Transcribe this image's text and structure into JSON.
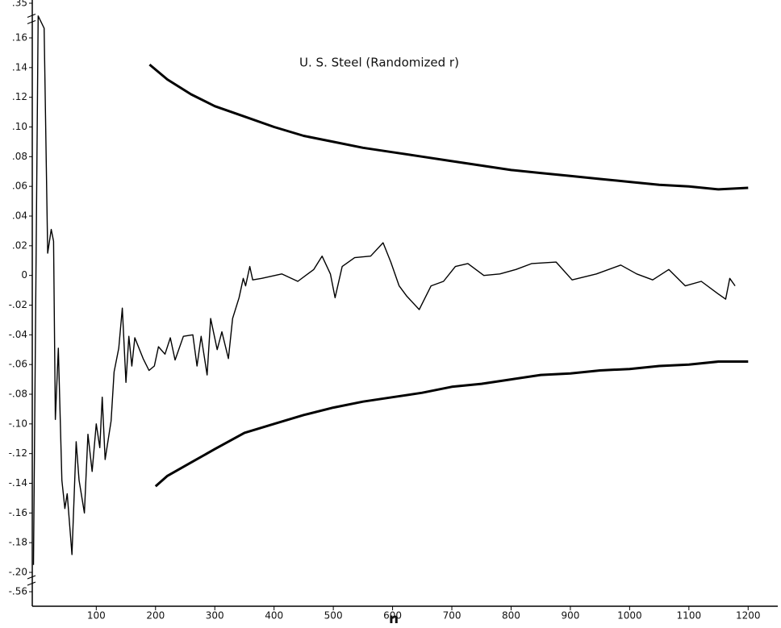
{
  "chart_data": {
    "type": "line",
    "title": "U. S. Steel (Randomized r)",
    "xlabel": "n",
    "xlim": [
      -8,
      1250
    ],
    "xticks": [
      100,
      200,
      300,
      400,
      500,
      600,
      700,
      800,
      900,
      1000,
      1100,
      1200
    ],
    "ylim": [
      -0.56,
      0.35
    ],
    "axis_break": true,
    "yticks": [
      {
        "value": -0.56,
        "label": "-.56"
      },
      {
        "value": -0.2,
        "label": "-.20"
      },
      {
        "value": -0.18,
        "label": "-.18"
      },
      {
        "value": -0.16,
        "label": "-.16"
      },
      {
        "value": -0.14,
        "label": "-.14"
      },
      {
        "value": -0.12,
        "label": "-.12"
      },
      {
        "value": -0.1,
        "label": "-.10"
      },
      {
        "value": -0.08,
        "label": "-.08"
      },
      {
        "value": -0.06,
        "label": "-.06"
      },
      {
        "value": -0.04,
        "label": "-.04"
      },
      {
        "value": -0.02,
        "label": "-.02"
      },
      0,
      {
        "value": 0.02,
        "label": ".02"
      },
      {
        "value": 0.04,
        "label": ".04"
      },
      {
        "value": 0.06,
        "label": ".06"
      },
      {
        "value": 0.08,
        "label": ".08"
      },
      {
        "value": 0.1,
        "label": ".10"
      },
      {
        "value": 0.12,
        "label": ".12"
      },
      {
        "value": 0.14,
        "label": ".14"
      },
      {
        "value": 0.16,
        "label": ".16"
      },
      {
        "value": 0.35,
        "label": ".35"
      }
    ],
    "series": [
      {
        "color": "#000000",
        "width": 3,
        "x": [
          190,
          220,
          260,
          300,
          350,
          400,
          450,
          500,
          550,
          600,
          650,
          700,
          750,
          800,
          850,
          900,
          950,
          1000,
          1050,
          1100,
          1150,
          1200
        ],
        "values": [
          0.142,
          0.132,
          0.122,
          0.114,
          0.107,
          0.1,
          0.094,
          0.09,
          0.086,
          0.083,
          0.08,
          0.077,
          0.074,
          0.071,
          0.069,
          0.067,
          0.065,
          0.063,
          0.061,
          0.06,
          0.058,
          0.059
        ]
      },
      {
        "color": "#000000",
        "width": 3,
        "x": [
          200,
          220,
          260,
          300,
          350,
          400,
          450,
          500,
          550,
          600,
          650,
          700,
          750,
          800,
          850,
          900,
          950,
          1000,
          1050,
          1100,
          1150,
          1200
        ],
        "values": [
          -0.142,
          -0.135,
          -0.126,
          -0.117,
          -0.106,
          -0.1,
          -0.094,
          -0.089,
          -0.085,
          -0.082,
          -0.079,
          -0.075,
          -0.073,
          -0.07,
          -0.067,
          -0.066,
          -0.064,
          -0.063,
          -0.061,
          -0.06,
          -0.058,
          -0.058
        ]
      },
      {
        "color": "#000000",
        "width": 1.4,
        "x": [
          -6,
          2,
          12,
          18,
          24,
          28,
          31,
          36,
          42,
          47,
          51,
          59,
          66,
          71,
          80,
          86,
          93,
          100,
          106,
          110,
          115,
          125,
          130,
          138,
          144,
          150,
          155,
          160,
          165,
          179,
          189,
          198,
          205,
          216,
          225,
          233,
          247,
          263,
          270,
          277,
          287,
          293,
          304,
          312,
          323,
          330,
          341,
          348,
          352,
          359,
          364,
          379,
          413,
          440,
          467,
          481,
          495,
          503,
          515,
          536,
          563,
          584,
          597,
          611,
          624,
          645,
          665,
          686,
          706,
          727,
          754,
          781,
          808,
          835,
          876,
          903,
          944,
          985,
          1012,
          1039,
          1066,
          1094,
          1121,
          1148,
          1162,
          1169,
          1178
        ],
        "values": [
          -0.195,
          0.28,
          0.213,
          0.015,
          0.031,
          0.023,
          -0.097,
          -0.049,
          -0.138,
          -0.157,
          -0.147,
          -0.188,
          -0.112,
          -0.138,
          -0.16,
          -0.107,
          -0.132,
          -0.1,
          -0.116,
          -0.082,
          -0.124,
          -0.098,
          -0.065,
          -0.049,
          -0.022,
          -0.072,
          -0.041,
          -0.061,
          -0.042,
          -0.056,
          -0.064,
          -0.061,
          -0.048,
          -0.053,
          -0.042,
          -0.057,
          -0.041,
          -0.04,
          -0.061,
          -0.041,
          -0.067,
          -0.029,
          -0.05,
          -0.038,
          -0.056,
          -0.029,
          -0.015,
          -0.002,
          -0.007,
          0.006,
          -0.003,
          -0.002,
          0.001,
          -0.004,
          0.004,
          0.013,
          0.001,
          -0.015,
          0.006,
          0.012,
          0.013,
          0.022,
          0.009,
          -0.007,
          -0.014,
          -0.023,
          -0.007,
          -0.004,
          0.006,
          0.008,
          0,
          0.001,
          0.004,
          0.008,
          0.009,
          -0.003,
          0.001,
          0.007,
          0.001,
          -0.003,
          0.004,
          -0.007,
          -0.004,
          -0.012,
          -0.016,
          -0.002,
          -0.007
        ]
      }
    ]
  }
}
